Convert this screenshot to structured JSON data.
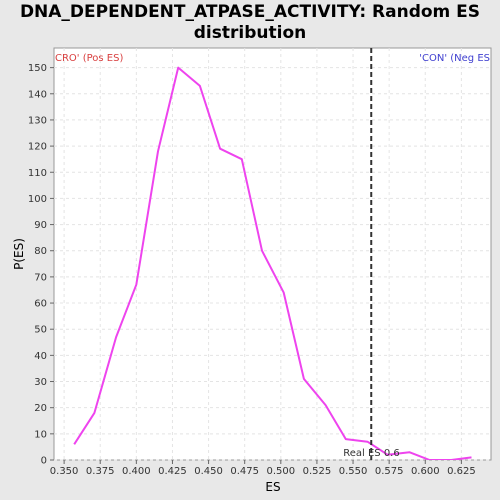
{
  "window": {
    "title_line1": "DNA_DEPENDENT_ATPASE_ACTIVITY: Random ES",
    "title_line2": "distribution"
  },
  "chart_data": {
    "type": "line",
    "xlabel": "ES",
    "ylabel": "P(ES)",
    "xlim": [
      0.343,
      0.6455
    ],
    "ylim": [
      0,
      157.5
    ],
    "x_ticks": [
      0.35,
      0.375,
      0.4,
      0.425,
      0.45,
      0.475,
      0.5,
      0.525,
      0.55,
      0.575,
      0.6,
      0.625
    ],
    "x_tick_labels": [
      "0.350",
      "0.375",
      "0.400",
      "0.425",
      "0.450",
      "0.475",
      "0.500",
      "0.525",
      "0.550",
      "0.575",
      "0.600",
      "0.625"
    ],
    "y_ticks": [
      0,
      10,
      20,
      30,
      40,
      50,
      60,
      70,
      80,
      90,
      100,
      110,
      120,
      130,
      140,
      150
    ],
    "grid": true,
    "series": [
      {
        "color": "#ee44ee",
        "x": [
          0.357,
          0.371,
          0.386,
          0.4,
          0.415,
          0.429,
          0.444,
          0.458,
          0.473,
          0.487,
          0.502,
          0.516,
          0.531,
          0.545,
          0.56,
          0.574,
          0.589,
          0.603,
          0.618,
          0.632
        ],
        "y": [
          6,
          18,
          47,
          67,
          118,
          150,
          143,
          119,
          115,
          80,
          64,
          31,
          21,
          8,
          7,
          2,
          3,
          0,
          0,
          1
        ]
      }
    ],
    "annotations": {
      "left_label": "CRO' (Pos ES)",
      "left_color": "#d94040",
      "right_label": "'CON' (Neg ES",
      "right_color": "#4040d0",
      "real_es_label": "Real ES 0.6",
      "real_es_x": 0.5626
    }
  }
}
